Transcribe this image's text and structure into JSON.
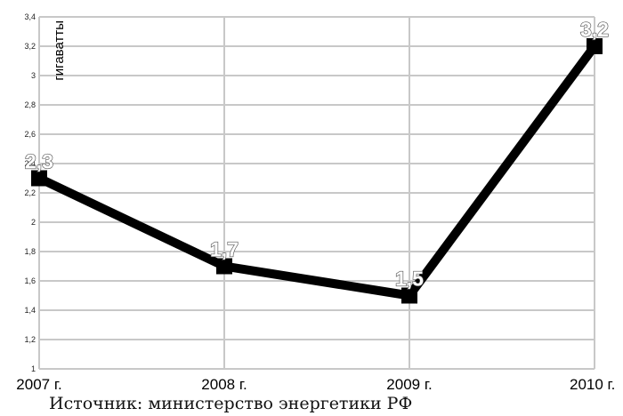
{
  "chart_data": {
    "type": "line",
    "categories": [
      "2007 г.",
      "2008 г.",
      "2009 г.",
      "2010 г."
    ],
    "values": [
      2.3,
      1.7,
      1.5,
      3.2
    ],
    "data_labels": [
      "2,3",
      "1,7",
      "1,5",
      "3,2"
    ],
    "ylabel": "гигаватты",
    "ylim": [
      1,
      3.4
    ],
    "y_ticks": [
      "1",
      "1,2",
      "1,4",
      "1,6",
      "1,8",
      "2",
      "2,2",
      "2,4",
      "2,6",
      "2,8",
      "3",
      "3,2",
      "3,4"
    ],
    "grid": true,
    "line_color": "#000000",
    "grid_color": "#c8c8c8",
    "marker": "square"
  },
  "source": "Источник: министерство энергетики РФ"
}
